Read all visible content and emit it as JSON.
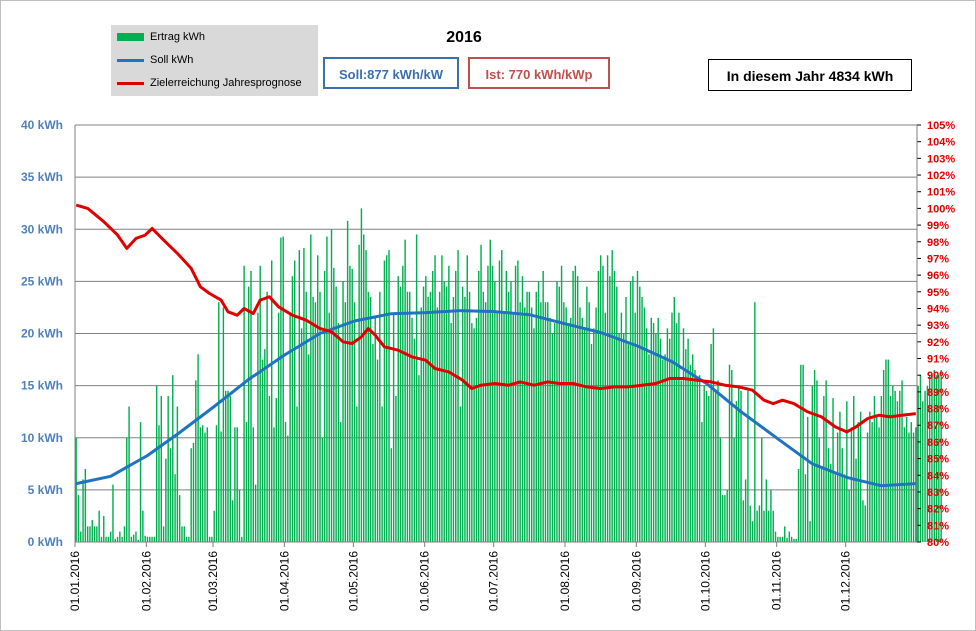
{
  "chart_data": {
    "type": "bar+line",
    "title": "2016",
    "legend": {
      "placement": "top-left",
      "entries": [
        {
          "label": "Ertrag kWh",
          "kind": "bar",
          "color": "#00b050"
        },
        {
          "label": "Soll kWh",
          "kind": "line",
          "color": "#1f73c0"
        },
        {
          "label": "Zielerreichung Jahresprognose",
          "kind": "line",
          "color": "#e00000"
        }
      ]
    },
    "info_boxes": {
      "soll": "Soll:877 kWh/kW",
      "ist": "Ist: 770 kWh/kWp",
      "jahr": "In diesem Jahr 4834 kWh"
    },
    "colors": {
      "ertrag": "#00b050",
      "soll": "#1f73c0",
      "ziel": "#e00000",
      "left_axis": "#4f81bd",
      "right_axis": "#e00000",
      "grid": "#808080"
    },
    "y_left": {
      "ticks": [
        "0 kWh",
        "5 kWh",
        "10 kWh",
        "15 kWh",
        "20 kWh",
        "25 kWh",
        "30 kWh",
        "35 kWh",
        "40 kWh"
      ],
      "range": [
        0,
        40
      ]
    },
    "y_right": {
      "ticks": [
        "80%",
        "81%",
        "82%",
        "83%",
        "84%",
        "85%",
        "86%",
        "87%",
        "88%",
        "89%",
        "90%",
        "91%",
        "92%",
        "93%",
        "94%",
        "95%",
        "96%",
        "97%",
        "98%",
        "99%",
        "100%",
        "101%",
        "102%",
        "103%",
        "104%",
        "105%"
      ],
      "range": [
        80,
        105
      ]
    },
    "x_axis": {
      "days": 366,
      "ticks": [
        {
          "label": "01.01.2016",
          "day": 0
        },
        {
          "label": "01.02.2016",
          "day": 31
        },
        {
          "label": "01.03.2016",
          "day": 60
        },
        {
          "label": "01.04.2016",
          "day": 91
        },
        {
          "label": "01.05.2016",
          "day": 121
        },
        {
          "label": "01.06.2016",
          "day": 152
        },
        {
          "label": "01.07.2016",
          "day": 182
        },
        {
          "label": "01.08.2016",
          "day": 213
        },
        {
          "label": "01.09.2016",
          "day": 244
        },
        {
          "label": "01.10.2016",
          "day": 274
        },
        {
          "label": "01.11.2016",
          "day": 305
        },
        {
          "label": "01.12.2016",
          "day": 335
        }
      ]
    },
    "grid": true,
    "soll_kwh": [
      {
        "day": 0,
        "value": 5.6
      },
      {
        "day": 15,
        "value": 6.3
      },
      {
        "day": 31,
        "value": 8.3
      },
      {
        "day": 45,
        "value": 10.5
      },
      {
        "day": 60,
        "value": 13.0
      },
      {
        "day": 75,
        "value": 15.6
      },
      {
        "day": 91,
        "value": 18.0
      },
      {
        "day": 106,
        "value": 20.0
      },
      {
        "day": 121,
        "value": 21.2
      },
      {
        "day": 137,
        "value": 21.9
      },
      {
        "day": 152,
        "value": 22.0
      },
      {
        "day": 167,
        "value": 22.2
      },
      {
        "day": 182,
        "value": 22.1
      },
      {
        "day": 197,
        "value": 21.8
      },
      {
        "day": 213,
        "value": 20.9
      },
      {
        "day": 228,
        "value": 20.1
      },
      {
        "day": 244,
        "value": 18.8
      },
      {
        "day": 259,
        "value": 17.3
      },
      {
        "day": 274,
        "value": 15.2
      },
      {
        "day": 289,
        "value": 12.5
      },
      {
        "day": 305,
        "value": 9.9
      },
      {
        "day": 320,
        "value": 7.5
      },
      {
        "day": 335,
        "value": 6.2
      },
      {
        "day": 350,
        "value": 5.4
      },
      {
        "day": 365,
        "value": 5.6
      }
    ],
    "zielerreichung_pct": [
      {
        "day": 0,
        "value": 100.2
      },
      {
        "day": 5,
        "value": 100.0
      },
      {
        "day": 12,
        "value": 99.2
      },
      {
        "day": 18,
        "value": 98.4
      },
      {
        "day": 22,
        "value": 97.6
      },
      {
        "day": 26,
        "value": 98.2
      },
      {
        "day": 30,
        "value": 98.4
      },
      {
        "day": 33,
        "value": 98.8
      },
      {
        "day": 38,
        "value": 98.1
      },
      {
        "day": 44,
        "value": 97.3
      },
      {
        "day": 50,
        "value": 96.4
      },
      {
        "day": 54,
        "value": 95.3
      },
      {
        "day": 58,
        "value": 94.9
      },
      {
        "day": 63,
        "value": 94.5
      },
      {
        "day": 66,
        "value": 93.8
      },
      {
        "day": 70,
        "value": 93.6
      },
      {
        "day": 73,
        "value": 94.0
      },
      {
        "day": 77,
        "value": 93.7
      },
      {
        "day": 80,
        "value": 94.5
      },
      {
        "day": 84,
        "value": 94.7
      },
      {
        "day": 88,
        "value": 94.1
      },
      {
        "day": 94,
        "value": 93.6
      },
      {
        "day": 100,
        "value": 93.3
      },
      {
        "day": 106,
        "value": 92.8
      },
      {
        "day": 111,
        "value": 92.6
      },
      {
        "day": 116,
        "value": 92.0
      },
      {
        "day": 120,
        "value": 91.9
      },
      {
        "day": 124,
        "value": 92.3
      },
      {
        "day": 127,
        "value": 92.8
      },
      {
        "day": 130,
        "value": 92.4
      },
      {
        "day": 134,
        "value": 91.7
      },
      {
        "day": 140,
        "value": 91.5
      },
      {
        "day": 146,
        "value": 91.1
      },
      {
        "day": 152,
        "value": 90.9
      },
      {
        "day": 156,
        "value": 90.4
      },
      {
        "day": 162,
        "value": 90.2
      },
      {
        "day": 168,
        "value": 89.7
      },
      {
        "day": 172,
        "value": 89.2
      },
      {
        "day": 176,
        "value": 89.4
      },
      {
        "day": 182,
        "value": 89.5
      },
      {
        "day": 188,
        "value": 89.4
      },
      {
        "day": 193,
        "value": 89.6
      },
      {
        "day": 199,
        "value": 89.4
      },
      {
        "day": 205,
        "value": 89.6
      },
      {
        "day": 210,
        "value": 89.5
      },
      {
        "day": 216,
        "value": 89.5
      },
      {
        "day": 222,
        "value": 89.3
      },
      {
        "day": 228,
        "value": 89.2
      },
      {
        "day": 234,
        "value": 89.3
      },
      {
        "day": 240,
        "value": 89.3
      },
      {
        "day": 246,
        "value": 89.4
      },
      {
        "day": 252,
        "value": 89.5
      },
      {
        "day": 258,
        "value": 89.8
      },
      {
        "day": 264,
        "value": 89.8
      },
      {
        "day": 270,
        "value": 89.7
      },
      {
        "day": 276,
        "value": 89.6
      },
      {
        "day": 282,
        "value": 89.4
      },
      {
        "day": 288,
        "value": 89.3
      },
      {
        "day": 294,
        "value": 89.1
      },
      {
        "day": 299,
        "value": 88.5
      },
      {
        "day": 303,
        "value": 88.3
      },
      {
        "day": 307,
        "value": 88.5
      },
      {
        "day": 312,
        "value": 88.3
      },
      {
        "day": 318,
        "value": 87.8
      },
      {
        "day": 324,
        "value": 87.5
      },
      {
        "day": 330,
        "value": 86.9
      },
      {
        "day": 335,
        "value": 86.6
      },
      {
        "day": 339,
        "value": 86.9
      },
      {
        "day": 344,
        "value": 87.4
      },
      {
        "day": 349,
        "value": 87.6
      },
      {
        "day": 354,
        "value": 87.5
      },
      {
        "day": 359,
        "value": 87.6
      },
      {
        "day": 365,
        "value": 87.7
      }
    ],
    "ertrag_kwh": [
      10.0,
      4.5,
      1.0,
      6.0,
      7.0,
      1.5,
      1.5,
      2.1,
      1.5,
      1.5,
      3.0,
      0.5,
      2.5,
      0.5,
      0.5,
      1.0,
      5.5,
      0.3,
      0.5,
      1.0,
      0.5,
      1.5,
      10.0,
      13.0,
      0.5,
      0.7,
      1.0,
      0.2,
      11.5,
      3.0,
      0.6,
      0.5,
      0.5,
      0.5,
      0.5,
      15.0,
      11.2,
      14.0,
      1.5,
      8.0,
      14.0,
      9.0,
      16.0,
      6.5,
      13.0,
      4.5,
      1.5,
      1.5,
      0.5,
      0.5,
      9.0,
      9.5,
      15.5,
      18.0,
      11.0,
      11.2,
      10.5,
      11.0,
      0.5,
      0.5,
      3.0,
      11.2,
      23.0,
      10.6,
      22.5,
      14.5,
      14.5,
      14.0,
      4.0,
      11.0,
      11.0,
      5.0,
      0.5,
      26.5,
      11.5,
      24.5,
      26.0,
      11.0,
      5.5,
      22.0,
      26.5,
      17.5,
      18.5,
      24.0,
      14.0,
      27.0,
      11.0,
      13.8,
      22.0,
      29.2,
      29.3,
      11.5,
      10.2,
      22.0,
      25.5,
      27.0,
      13.0,
      28.0,
      20.5,
      28.2,
      24.0,
      18.0,
      29.5,
      23.5,
      23.0,
      27.5,
      24.0,
      10.0,
      26.0,
      29.3,
      22.0,
      30.0,
      26.3,
      24.5,
      21.0,
      11.5,
      25.0,
      23.0,
      30.8,
      26.5,
      26.2,
      23.0,
      13.0,
      28.5,
      32.0,
      29.5,
      28.0,
      24.0,
      23.5,
      19.0,
      21.5,
      17.5,
      24.0,
      13.0,
      27.0,
      27.5,
      28.0,
      9.0,
      22.0,
      14.0,
      25.5,
      24.5,
      26.5,
      29.0,
      24.0,
      24.0,
      21.5,
      19.5,
      29.5,
      16.0,
      22.5,
      24.5,
      25.5,
      23.5,
      24.0,
      26.0,
      27.5,
      22.5,
      24.0,
      27.5,
      25.0,
      24.5,
      26.5,
      21.0,
      23.5,
      26.0,
      28.0,
      13.0,
      24.5,
      23.5,
      27.5,
      24.0,
      21.0,
      20.5,
      21.5,
      26.0,
      28.5,
      24.0,
      23.0,
      26.5,
      29.0,
      26.5,
      25.0,
      22.0,
      27.0,
      28.0,
      22.0,
      26.0,
      24.0,
      25.0,
      22.0,
      26.5,
      27.0,
      23.0,
      25.5,
      22.5,
      24.0,
      24.0,
      22.5,
      20.5,
      24.0,
      25.0,
      23.0,
      26.0,
      23.0,
      23.0,
      21.5,
      20.0,
      21.0,
      25.0,
      24.5,
      26.5,
      23.0,
      22.5,
      21.0,
      21.5,
      26.0,
      26.5,
      25.5,
      22.5,
      21.5,
      20.5,
      24.5,
      23.0,
      19.0,
      20.5,
      22.5,
      26.0,
      27.5,
      26.5,
      22.0,
      27.5,
      25.5,
      28.0,
      26.0,
      24.5,
      20.0,
      22.0,
      20.0,
      23.5,
      19.0,
      25.0,
      25.5,
      22.0,
      26.0,
      24.5,
      23.5,
      22.5,
      20.5,
      18.0,
      21.5,
      21.0,
      20.0,
      21.5,
      19.5,
      17.5,
      18.0,
      20.5,
      19.5,
      22.0,
      23.5,
      21.0,
      22.0,
      15.5,
      20.5,
      18.5,
      19.5,
      17.0,
      18.0,
      16.5,
      15.5,
      16.0,
      11.5,
      15.0,
      14.5,
      14.0,
      19.0,
      20.5,
      14.5,
      15.5,
      10.0,
      4.5,
      4.5,
      5.0,
      17.0,
      16.5,
      10.0,
      13.5,
      15.0,
      14.5,
      4.0,
      6.0,
      14.5,
      3.5,
      2.0,
      23.0,
      3.0,
      3.5,
      10.0,
      3.0,
      6.0,
      3.0,
      5.0,
      3.0,
      1.0,
      0.5,
      0.5,
      0.5,
      1.5,
      0.4,
      1.0,
      0.5,
      0.3,
      0.3,
      7.0,
      17.0,
      17.0,
      6.5,
      12.0,
      2.0,
      15.0,
      16.5,
      15.5,
      10.0,
      7.0,
      14.0,
      15.5,
      9.0,
      7.5,
      13.8,
      6.5,
      10.5,
      12.5,
      9.0,
      6.5,
      13.5,
      5.0,
      11.0,
      14.0,
      8.0,
      11.5,
      12.5,
      4.0,
      3.5,
      10.5,
      12.5,
      11.5,
      14.0,
      12.0,
      11.0,
      14.0,
      16.5,
      17.5,
      17.5,
      14.0,
      15.0,
      14.5,
      13.5,
      14.5,
      15.5,
      11.0,
      12.0,
      10.5,
      11.5,
      10.5,
      11.0,
      15.0,
      16.0,
      13.5,
      14.5,
      15.0,
      16.0,
      16.0,
      16.5,
      16.0,
      16.0,
      16.5
    ]
  }
}
